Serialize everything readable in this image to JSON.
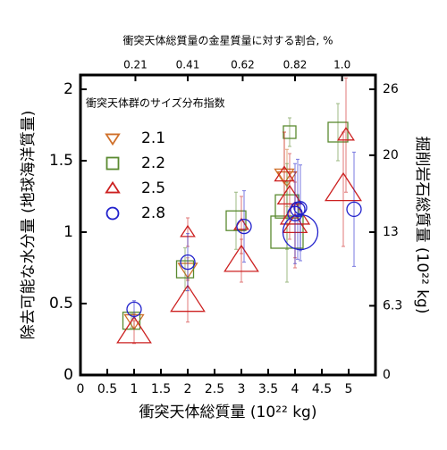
{
  "chart_data": {
    "type": "scatter",
    "title": "衝突天体総質量の金星質量に対する割合, %",
    "x_label": "衝突天体総質量 (10²² kg)",
    "y_label": "除去可能な水分量 (地球海洋質量)",
    "y2_label": "掘削岩石総質量 (10²² kg)",
    "legend_title": "衝突天体群のサイズ分布指数",
    "xlim": [
      0,
      5.5
    ],
    "xticks": [
      0,
      0.5,
      1,
      1.5,
      2,
      2.5,
      3,
      3.5,
      4,
      4.5,
      5
    ],
    "ylim": [
      0,
      2.1
    ],
    "yticks": [
      0,
      0.5,
      1,
      1.5,
      2
    ],
    "y2lim": [
      0,
      27.3
    ],
    "y2ticks": [
      0,
      6.3,
      13,
      20,
      26
    ],
    "x2lim": [
      0,
      1.1275
    ],
    "x2ticks": [
      0.21,
      0.41,
      0.62,
      0.82,
      {
        "value": 1.0,
        "label": "1.0"
      }
    ],
    "series": [
      {
        "name": "2.1",
        "color": "#d0702a",
        "marker": "triangle-down",
        "x": [
          1.0,
          2.0,
          3.8,
          3.85
        ],
        "values": [
          0.38,
          0.74,
          1.4,
          1.38
        ],
        "errors": [
          0.05,
          0.08,
          0.3,
          0.2
        ],
        "sizes": [
          1.5,
          1.5,
          1.5,
          1.5
        ]
      },
      {
        "name": "2.2",
        "color": "#5a8a30",
        "marker": "square",
        "x": [
          0.95,
          1.95,
          2.9,
          3.85,
          3.85,
          3.9,
          4.8
        ],
        "values": [
          0.38,
          0.74,
          1.08,
          1.0,
          1.18,
          1.7,
          1.7
        ],
        "errors": [
          0.05,
          0.15,
          0.2,
          0.35,
          0.3,
          0.1,
          0.2
        ],
        "sizes": [
          1.5,
          1.5,
          1.8,
          3.2,
          2.2,
          1,
          1.8
        ]
      },
      {
        "name": "2.5",
        "color": "#cc2020",
        "marker": "triangle",
        "x": [
          1.0,
          2.0,
          2.0,
          3.0,
          3.0,
          3.8,
          3.9,
          4.0,
          4.0,
          4.9,
          4.95
        ],
        "values": [
          0.3,
          0.52,
          1.0,
          0.8,
          1.05,
          1.4,
          1.25,
          1.12,
          1.05,
          1.3,
          1.68
        ],
        "errors": [
          0.08,
          0.15,
          0.1,
          0.15,
          0.2,
          0.3,
          0.3,
          0.3,
          0.3,
          0.4,
          0.4
        ],
        "sizes": [
          3,
          3,
          1,
          3,
          1,
          1.5,
          2,
          2.5,
          2,
          3.2,
          1.2
        ]
      },
      {
        "name": "2.8",
        "color": "#2020cc",
        "marker": "circle",
        "x": [
          1.0,
          2.0,
          3.05,
          4.0,
          4.05,
          4.1,
          4.1,
          5.1
        ],
        "values": [
          0.46,
          0.79,
          1.04,
          1.13,
          1.16,
          1.17,
          1.0,
          1.16
        ],
        "errors": [
          0.06,
          0.2,
          0.25,
          0.35,
          0.35,
          0.3,
          0.2,
          0.4
        ],
        "sizes": [
          1.2,
          1.2,
          1.2,
          1.2,
          1.2,
          1,
          3.5,
          1.2
        ]
      }
    ]
  }
}
